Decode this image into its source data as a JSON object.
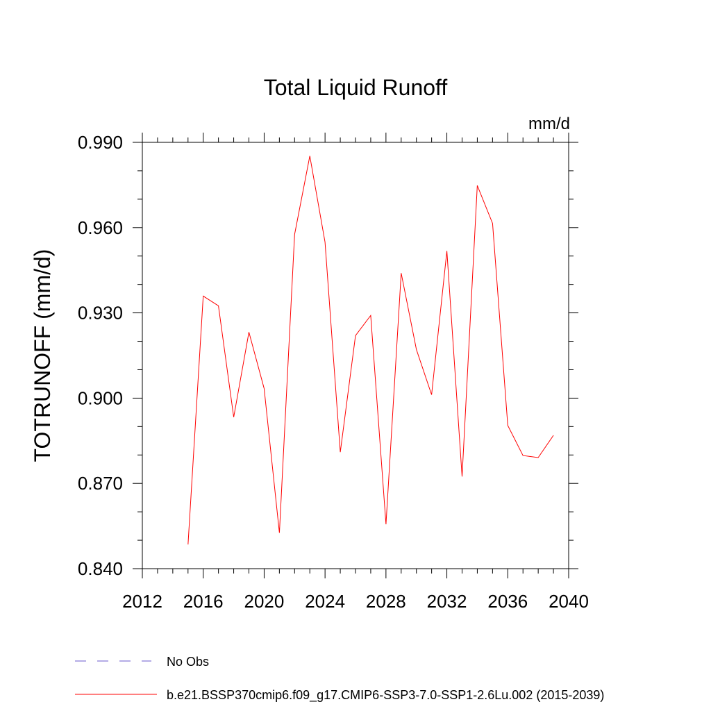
{
  "chart_data": {
    "type": "line",
    "title": "Total Liquid Runoff",
    "units_label": "mm/d",
    "ylabel": "TOTRUNOFF  (mm/d)",
    "xlabel": "",
    "xlim": [
      2012,
      2040
    ],
    "ylim": [
      0.84,
      0.99
    ],
    "x_ticks": [
      2012,
      2016,
      2020,
      2024,
      2028,
      2032,
      2036,
      2040
    ],
    "x_tick_labels": [
      "2012",
      "2016",
      "2020",
      "2024",
      "2028",
      "2032",
      "2036",
      "2040"
    ],
    "y_ticks": [
      0.84,
      0.87,
      0.9,
      0.93,
      0.96,
      0.99
    ],
    "y_tick_labels": [
      "0.840",
      "0.870",
      "0.900",
      "0.930",
      "0.960",
      "0.990"
    ],
    "grid": false,
    "legend_position": "bottom",
    "series": [
      {
        "name": "b.e21.BSSP370cmip6.f09_g17.CMIP6-SSP3-7.0-SSP1-2.6Lu.002 (2015-2039)",
        "color": "#ff0000",
        "style": "solid",
        "x": [
          2015,
          2016,
          2017,
          2018,
          2019,
          2020,
          2021,
          2022,
          2023,
          2024,
          2025,
          2026,
          2027,
          2028,
          2029,
          2030,
          2031,
          2032,
          2033,
          2034,
          2035,
          2036,
          2037,
          2038,
          2039
        ],
        "y": [
          0.8485,
          0.9359,
          0.9325,
          0.8933,
          0.9232,
          0.9034,
          0.8526,
          0.9576,
          0.9852,
          0.9549,
          0.881,
          0.922,
          0.9291,
          0.8556,
          0.944,
          0.9171,
          0.9012,
          0.9518,
          0.8724,
          0.9748,
          0.9615,
          0.8904,
          0.8798,
          0.8791,
          0.8869
        ]
      }
    ],
    "legend": [
      {
        "label": "No Obs",
        "color": "#6a5acd",
        "style": "dashed"
      },
      {
        "label": "b.e21.BSSP370cmip6.f09_g17.CMIP6-SSP3-7.0-SSP1-2.6Lu.002 (2015-2039)",
        "color": "#ff0000",
        "style": "solid"
      }
    ]
  }
}
